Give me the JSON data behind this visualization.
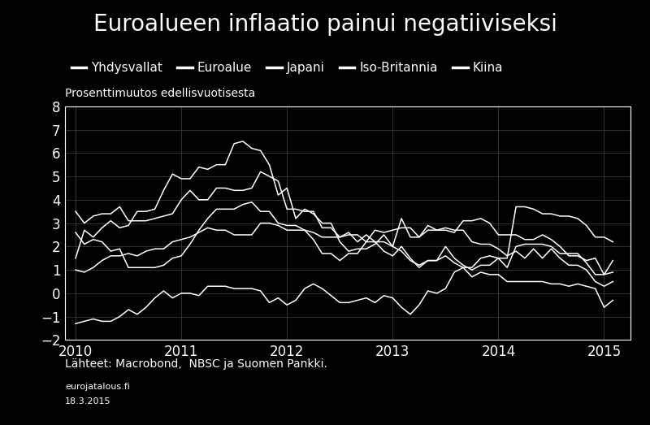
{
  "title": "Euroalueen inflaatio painui negatiiviseksi",
  "ylabel": "Prosenttimuutos edellisvuotisesta",
  "source_line1": "Lähteet: Macrobond,  NBSC ja Suomen Pankki.",
  "source_line2": "eurojatalous.fi",
  "source_line3": "18.3.2015",
  "background_color": "#000000",
  "text_color": "#ffffff",
  "line_color": "#ffffff",
  "grid_color": "#444444",
  "ylim": [
    -2,
    8
  ],
  "yticks": [
    -2,
    -1,
    0,
    1,
    2,
    3,
    4,
    5,
    6,
    7,
    8
  ],
  "legend_labels": [
    "Yhdysvallat",
    "Euroalue",
    "Japani",
    "Iso-Britannia",
    "Kiina"
  ],
  "series": {
    "Yhdysvallat": {
      "t": [
        2010.0,
        2010.083,
        2010.167,
        2010.25,
        2010.333,
        2010.417,
        2010.5,
        2010.583,
        2010.667,
        2010.75,
        2010.833,
        2010.917,
        2011.0,
        2011.083,
        2011.167,
        2011.25,
        2011.333,
        2011.417,
        2011.5,
        2011.583,
        2011.667,
        2011.75,
        2011.833,
        2011.917,
        2012.0,
        2012.083,
        2012.167,
        2012.25,
        2012.333,
        2012.417,
        2012.5,
        2012.583,
        2012.667,
        2012.75,
        2012.833,
        2012.917,
        2013.0,
        2013.083,
        2013.167,
        2013.25,
        2013.333,
        2013.417,
        2013.5,
        2013.583,
        2013.667,
        2013.75,
        2013.833,
        2013.917,
        2014.0,
        2014.083,
        2014.167,
        2014.25,
        2014.333,
        2014.417,
        2014.5,
        2014.583,
        2014.667,
        2014.75,
        2014.833,
        2014.917,
        2015.0,
        2015.083
      ],
      "v": [
        2.6,
        2.1,
        2.3,
        2.2,
        1.8,
        1.9,
        1.1,
        1.1,
        1.1,
        1.1,
        1.2,
        1.5,
        1.6,
        2.1,
        2.7,
        3.2,
        3.6,
        3.6,
        3.6,
        3.8,
        3.9,
        3.5,
        3.5,
        3.0,
        2.9,
        2.9,
        2.7,
        2.3,
        1.7,
        1.7,
        1.4,
        1.7,
        1.7,
        2.2,
        2.2,
        1.8,
        1.6,
        2.0,
        1.5,
        1.1,
        1.4,
        1.4,
        2.0,
        1.5,
        1.2,
        1.0,
        1.2,
        1.2,
        1.5,
        1.1,
        2.0,
        2.1,
        2.1,
        2.1,
        2.0,
        1.7,
        1.7,
        1.7,
        1.3,
        0.8,
        0.8,
        0.9
      ]
    },
    "Euroalue": {
      "t": [
        2010.0,
        2010.083,
        2010.167,
        2010.25,
        2010.333,
        2010.417,
        2010.5,
        2010.583,
        2010.667,
        2010.75,
        2010.833,
        2010.917,
        2011.0,
        2011.083,
        2011.167,
        2011.25,
        2011.333,
        2011.417,
        2011.5,
        2011.583,
        2011.667,
        2011.75,
        2011.833,
        2011.917,
        2012.0,
        2012.083,
        2012.167,
        2012.25,
        2012.333,
        2012.417,
        2012.5,
        2012.583,
        2012.667,
        2012.75,
        2012.833,
        2012.917,
        2013.0,
        2013.083,
        2013.167,
        2013.25,
        2013.333,
        2013.417,
        2013.5,
        2013.583,
        2013.667,
        2013.75,
        2013.833,
        2013.917,
        2014.0,
        2014.083,
        2014.167,
        2014.25,
        2014.333,
        2014.417,
        2014.5,
        2014.583,
        2014.667,
        2014.75,
        2014.833,
        2014.917,
        2015.0,
        2015.083
      ],
      "v": [
        1.0,
        0.9,
        1.1,
        1.4,
        1.6,
        1.6,
        1.7,
        1.6,
        1.8,
        1.9,
        1.9,
        2.2,
        2.3,
        2.4,
        2.6,
        2.8,
        2.7,
        2.7,
        2.5,
        2.5,
        2.5,
        3.0,
        3.0,
        2.9,
        2.7,
        2.7,
        2.7,
        2.6,
        2.4,
        2.4,
        2.4,
        2.6,
        2.2,
        2.5,
        2.2,
        2.2,
        2.0,
        1.8,
        1.4,
        1.2,
        1.4,
        1.4,
        1.6,
        1.3,
        1.1,
        0.7,
        0.9,
        0.8,
        0.8,
        0.5,
        0.5,
        0.5,
        0.5,
        0.5,
        0.4,
        0.4,
        0.3,
        0.4,
        0.3,
        0.2,
        -0.6,
        -0.3
      ]
    },
    "Japani": {
      "t": [
        2010.0,
        2010.083,
        2010.167,
        2010.25,
        2010.333,
        2010.417,
        2010.5,
        2010.583,
        2010.667,
        2010.75,
        2010.833,
        2010.917,
        2011.0,
        2011.083,
        2011.167,
        2011.25,
        2011.333,
        2011.417,
        2011.5,
        2011.583,
        2011.667,
        2011.75,
        2011.833,
        2011.917,
        2012.0,
        2012.083,
        2012.167,
        2012.25,
        2012.333,
        2012.417,
        2012.5,
        2012.583,
        2012.667,
        2012.75,
        2012.833,
        2012.917,
        2013.0,
        2013.083,
        2013.167,
        2013.25,
        2013.333,
        2013.417,
        2013.5,
        2013.583,
        2013.667,
        2013.75,
        2013.833,
        2013.917,
        2014.0,
        2014.083,
        2014.167,
        2014.25,
        2014.333,
        2014.417,
        2014.5,
        2014.583,
        2014.667,
        2014.75,
        2014.833,
        2014.917,
        2015.0,
        2015.083
      ],
      "v": [
        -1.3,
        -1.2,
        -1.1,
        -1.2,
        -1.2,
        -1.0,
        -0.7,
        -0.9,
        -0.6,
        -0.2,
        0.1,
        -0.2,
        0.0,
        0.0,
        -0.1,
        0.3,
        0.3,
        0.3,
        0.2,
        0.2,
        0.2,
        0.1,
        -0.4,
        -0.2,
        -0.5,
        -0.3,
        0.2,
        0.4,
        0.2,
        -0.1,
        -0.4,
        -0.4,
        -0.3,
        -0.2,
        -0.4,
        -0.1,
        -0.2,
        -0.6,
        -0.9,
        -0.5,
        0.1,
        0.0,
        0.2,
        0.9,
        1.1,
        1.1,
        1.5,
        1.6,
        1.5,
        1.5,
        3.7,
        3.7,
        3.6,
        3.4,
        3.4,
        3.3,
        3.3,
        3.2,
        2.9,
        2.4,
        2.4,
        2.2
      ]
    },
    "Iso-Britannia": {
      "t": [
        2010.0,
        2010.083,
        2010.167,
        2010.25,
        2010.333,
        2010.417,
        2010.5,
        2010.583,
        2010.667,
        2010.75,
        2010.833,
        2010.917,
        2011.0,
        2011.083,
        2011.167,
        2011.25,
        2011.333,
        2011.417,
        2011.5,
        2011.583,
        2011.667,
        2011.75,
        2011.833,
        2011.917,
        2012.0,
        2012.083,
        2012.167,
        2012.25,
        2012.333,
        2012.417,
        2012.5,
        2012.583,
        2012.667,
        2012.75,
        2012.833,
        2012.917,
        2013.0,
        2013.083,
        2013.167,
        2013.25,
        2013.333,
        2013.417,
        2013.5,
        2013.583,
        2013.667,
        2013.75,
        2013.833,
        2013.917,
        2014.0,
        2014.083,
        2014.167,
        2014.25,
        2014.333,
        2014.417,
        2014.5,
        2014.583,
        2014.667,
        2014.75,
        2014.833,
        2014.917,
        2015.0,
        2015.083
      ],
      "v": [
        3.5,
        3.0,
        3.3,
        3.4,
        3.4,
        3.7,
        3.1,
        3.1,
        3.1,
        3.2,
        3.3,
        3.4,
        4.0,
        4.4,
        4.0,
        4.0,
        4.5,
        4.5,
        4.4,
        4.4,
        4.5,
        5.2,
        5.0,
        4.8,
        3.6,
        3.6,
        3.5,
        3.5,
        2.8,
        2.8,
        2.4,
        2.5,
        2.5,
        2.2,
        2.7,
        2.6,
        2.7,
        2.8,
        2.8,
        2.4,
        2.9,
        2.7,
        2.8,
        2.7,
        2.7,
        2.2,
        2.1,
        2.1,
        1.9,
        1.6,
        1.8,
        1.5,
        1.9,
        1.5,
        1.9,
        1.5,
        1.2,
        1.2,
        1.0,
        0.5,
        0.3,
        0.5
      ]
    },
    "Kiina": {
      "t": [
        2010.0,
        2010.083,
        2010.167,
        2010.25,
        2010.333,
        2010.417,
        2010.5,
        2010.583,
        2010.667,
        2010.75,
        2010.833,
        2010.917,
        2011.0,
        2011.083,
        2011.167,
        2011.25,
        2011.333,
        2011.417,
        2011.5,
        2011.583,
        2011.667,
        2011.75,
        2011.833,
        2011.917,
        2012.0,
        2012.083,
        2012.167,
        2012.25,
        2012.333,
        2012.417,
        2012.5,
        2012.583,
        2012.667,
        2012.75,
        2012.833,
        2012.917,
        2013.0,
        2013.083,
        2013.167,
        2013.25,
        2013.333,
        2013.417,
        2013.5,
        2013.583,
        2013.667,
        2013.75,
        2013.833,
        2013.917,
        2014.0,
        2014.083,
        2014.167,
        2014.25,
        2014.333,
        2014.417,
        2014.5,
        2014.583,
        2014.667,
        2014.75,
        2014.833,
        2014.917,
        2015.0,
        2015.083
      ],
      "v": [
        1.5,
        2.7,
        2.4,
        2.8,
        3.1,
        2.8,
        2.9,
        3.5,
        3.5,
        3.6,
        4.4,
        5.1,
        4.9,
        4.9,
        5.4,
        5.3,
        5.5,
        5.5,
        6.4,
        6.5,
        6.2,
        6.1,
        5.5,
        4.2,
        4.5,
        3.2,
        3.6,
        3.4,
        3.0,
        3.0,
        2.2,
        1.8,
        1.9,
        1.9,
        2.1,
        2.5,
        2.0,
        3.2,
        2.4,
        2.4,
        2.7,
        2.7,
        2.7,
        2.6,
        3.1,
        3.1,
        3.2,
        3.0,
        2.5,
        2.5,
        2.5,
        2.3,
        2.3,
        2.5,
        2.3,
        2.0,
        1.6,
        1.6,
        1.4,
        1.5,
        0.8,
        1.4
      ]
    }
  },
  "xticks": [
    2010,
    2011,
    2012,
    2013,
    2014,
    2015
  ],
  "xlim": [
    2009.9,
    2015.25
  ],
  "title_fontsize": 20,
  "legend_fontsize": 11,
  "tick_fontsize": 12,
  "ylabel_fontsize": 10,
  "source_fontsize": 10,
  "source_small_fontsize": 8
}
